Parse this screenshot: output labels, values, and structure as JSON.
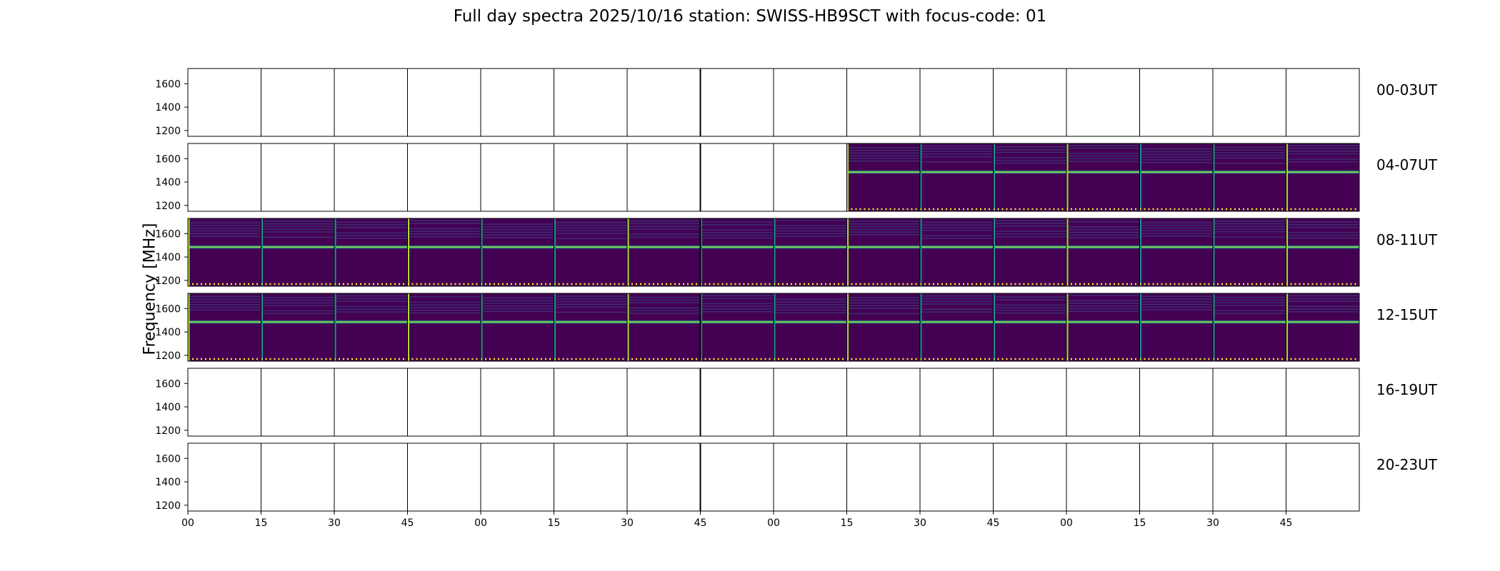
{
  "chart_data": {
    "type": "heatmap",
    "title": "Full day spectra 2025/10/16 station: SWISS-HB9SCT with focus-code: 01",
    "ylabel": "Frequency [MHz]",
    "xlabel": "",
    "colormap": "viridis",
    "ylim": [
      1150,
      1730
    ],
    "yticks": [
      1200,
      1400,
      1600
    ],
    "xticks": [
      "00",
      "15",
      "30",
      "45",
      "00",
      "15",
      "30",
      "45",
      "00",
      "15",
      "30",
      "45",
      "00",
      "15",
      "30",
      "45"
    ],
    "segments_per_row": 16,
    "segment_minutes": 15,
    "rows": [
      {
        "label": "00-03UT",
        "filled": [
          0,
          0,
          0,
          0,
          0,
          0,
          0,
          0,
          0,
          0,
          0,
          0,
          0,
          0,
          0,
          0
        ]
      },
      {
        "label": "04-07UT",
        "filled": [
          0,
          0,
          0,
          0,
          0,
          0,
          0,
          0,
          0,
          1,
          1,
          1,
          1,
          1,
          1,
          1
        ]
      },
      {
        "label": "08-11UT",
        "filled": [
          1,
          1,
          1,
          1,
          1,
          1,
          1,
          1,
          1,
          1,
          1,
          1,
          1,
          1,
          1,
          1
        ]
      },
      {
        "label": "12-15UT",
        "filled": [
          1,
          1,
          1,
          1,
          1,
          1,
          1,
          1,
          1,
          1,
          1,
          1,
          1,
          1,
          1,
          1
        ]
      },
      {
        "label": "16-19UT",
        "filled": [
          0,
          0,
          0,
          0,
          0,
          0,
          0,
          0,
          0,
          0,
          0,
          0,
          0,
          0,
          0,
          0
        ]
      },
      {
        "label": "20-23UT",
        "filled": [
          0,
          0,
          0,
          0,
          0,
          0,
          0,
          0,
          0,
          0,
          0,
          0,
          0,
          0,
          0,
          0
        ]
      }
    ],
    "grid": false,
    "colors": {
      "background": "#440154",
      "band_bright": "#a8db34",
      "band_mid": "#21918c",
      "band_dim": "#3b528b",
      "marker": "#fde725"
    }
  }
}
